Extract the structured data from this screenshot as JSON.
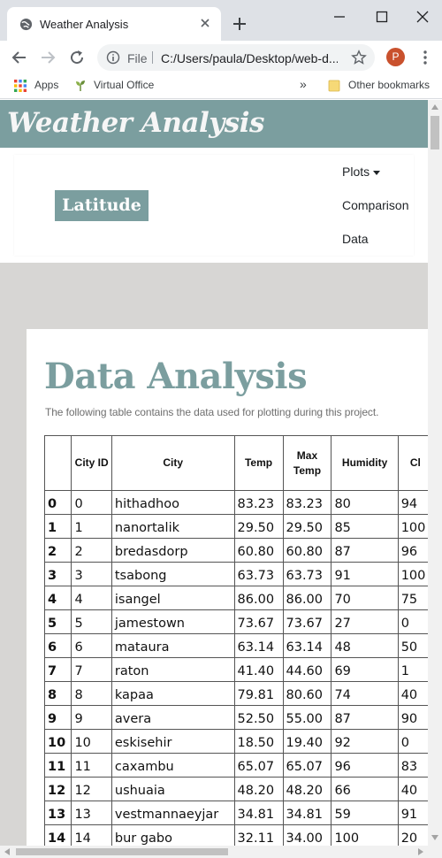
{
  "browser": {
    "tab_title": "Weather Analysis",
    "scheme_label": "File",
    "url": "C:/Users/paula/Desktop/web-d...",
    "profile_initial": "P",
    "bookmarks": {
      "apps": "Apps",
      "virtual_office": "Virtual Office",
      "overflow": "»",
      "other": "Other bookmarks"
    }
  },
  "site": {
    "title": "Weather Analysis",
    "brand": "Latitude",
    "nav": {
      "plots": "Plots",
      "comparison": "Comparison",
      "data": "Data"
    }
  },
  "main": {
    "heading": "Data Analysis",
    "intro": "The following table contains the data used for plotting during this project."
  },
  "table": {
    "headers": [
      "",
      "City ID",
      "City",
      "Temp",
      "Max Temp",
      "Humidity",
      "Cl"
    ],
    "rows": [
      [
        "0",
        "0",
        "hithadhoo",
        "83.23",
        "83.23",
        "80",
        "94"
      ],
      [
        "1",
        "1",
        "nanortalik",
        "29.50",
        "29.50",
        "85",
        "100"
      ],
      [
        "2",
        "2",
        "bredasdorp",
        "60.80",
        "60.80",
        "87",
        "96"
      ],
      [
        "3",
        "3",
        "tsabong",
        "63.73",
        "63.73",
        "91",
        "100"
      ],
      [
        "4",
        "4",
        "isangel",
        "86.00",
        "86.00",
        "70",
        "75"
      ],
      [
        "5",
        "5",
        "jamestown",
        "73.67",
        "73.67",
        "27",
        "0"
      ],
      [
        "6",
        "6",
        "mataura",
        "63.14",
        "63.14",
        "48",
        "50"
      ],
      [
        "7",
        "7",
        "raton",
        "41.40",
        "44.60",
        "69",
        "1"
      ],
      [
        "8",
        "8",
        "kapaa",
        "79.81",
        "80.60",
        "74",
        "40"
      ],
      [
        "9",
        "9",
        "avera",
        "52.50",
        "55.00",
        "87",
        "90"
      ],
      [
        "10",
        "10",
        "eskisehir",
        "18.50",
        "19.40",
        "92",
        "0"
      ],
      [
        "11",
        "11",
        "caxambu",
        "65.07",
        "65.07",
        "96",
        "83"
      ],
      [
        "12",
        "12",
        "ushuaia",
        "48.20",
        "48.20",
        "66",
        "40"
      ],
      [
        "13",
        "13",
        "vestmannaeyjar",
        "34.81",
        "34.81",
        "59",
        "91"
      ],
      [
        "14",
        "14",
        "bur gabo",
        "32.11",
        "34.00",
        "100",
        "20"
      ]
    ]
  },
  "colors": {
    "accent": "#7b9e9f",
    "page_bg": "#d7d6d4",
    "profile": "#c9512d"
  }
}
